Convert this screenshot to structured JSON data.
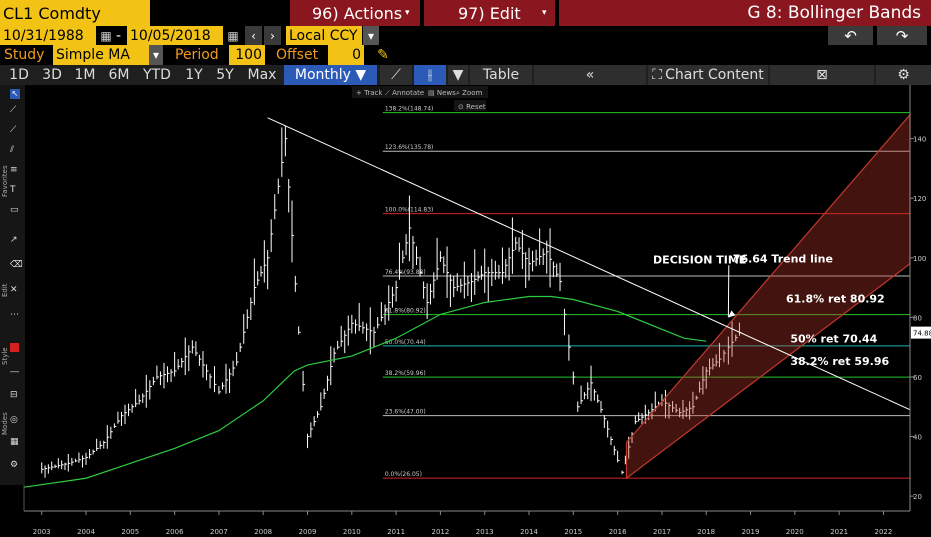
{
  "header": {
    "ticker": "CL1 Comdty",
    "actions": "96) Actions",
    "edit": "97) Edit",
    "title": "G 8: Bollinger Bands",
    "start_date": "10/31/1988",
    "date_sep": "-",
    "end_date": "10/05/2018",
    "currency": "Local CCY",
    "study_label": "Study",
    "study_value": "Simple MA",
    "period_label": "Period",
    "period_value": "100",
    "offset_label": "Offset",
    "offset_value": "0"
  },
  "periods": [
    "1D",
    "3D",
    "1M",
    "6M",
    "YTD",
    "1Y",
    "5Y",
    "Max"
  ],
  "frequency": "Monthly ▼",
  "toolbar": {
    "table": "Table",
    "collapse": "«",
    "chart_content": "Chart Content",
    "track": "Track",
    "annotate": "Annotate",
    "news": "News",
    "zoom": "Zoom",
    "reset": "Reset"
  },
  "side_tabs": [
    "Favorites",
    "Edit",
    "Style",
    "Modes"
  ],
  "colors": {
    "background": "#000000",
    "price_bars": "#ffffff",
    "moving_average": "#2ecc40",
    "trend_line": "#ffffff",
    "channel": "#c0392b",
    "fib_green": "#27c427",
    "fib_white": "#bbbbbb",
    "fib_red": "#d62020",
    "fib_cyan": "#1fb5b5"
  },
  "chart_data": {
    "type": "line",
    "title": "",
    "x_ticks": [
      "2003",
      "2004",
      "2005",
      "2006",
      "2007",
      "2008",
      "2009",
      "2010",
      "2011",
      "2012",
      "2013",
      "2014",
      "2015",
      "2016",
      "2017",
      "2018",
      "2019",
      "2020",
      "2021",
      "2022"
    ],
    "y_ticks": [
      20,
      40,
      60,
      80,
      100,
      120,
      140
    ],
    "ylim": [
      15,
      158
    ],
    "xlim": [
      2002.6,
      2022.6
    ],
    "last_price": "74.88",
    "price_series": {
      "name": "",
      "x": [
        2003.0,
        2003.3,
        2003.6,
        2004.0,
        2004.4,
        2004.8,
        2005.2,
        2005.6,
        2006.0,
        2006.4,
        2006.8,
        2007.0,
        2007.4,
        2007.8,
        2008.1,
        2008.5,
        2008.8,
        2009.0,
        2009.3,
        2009.6,
        2010.0,
        2010.5,
        2011.0,
        2011.3,
        2011.7,
        2012.0,
        2012.3,
        2012.7,
        2013.0,
        2013.4,
        2013.7,
        2014.0,
        2014.4,
        2014.7,
        2014.9,
        2015.1,
        2015.4,
        2015.7,
        2016.0,
        2016.1,
        2016.4,
        2016.7,
        2017.0,
        2017.4,
        2017.7,
        2018.0,
        2018.3,
        2018.5,
        2018.75
      ],
      "y": [
        29,
        30,
        31,
        33,
        38,
        47,
        52,
        60,
        62,
        70,
        60,
        55,
        65,
        90,
        100,
        140,
        75,
        40,
        50,
        68,
        78,
        75,
        90,
        110,
        85,
        100,
        90,
        92,
        95,
        95,
        105,
        98,
        102,
        92,
        70,
        50,
        58,
        46,
        32,
        28,
        45,
        48,
        52,
        48,
        50,
        62,
        66,
        70,
        74.88
      ]
    },
    "moving_average": {
      "name": "",
      "x": [
        2002.6,
        2004,
        2005,
        2006,
        2007,
        2008,
        2008.7,
        2009,
        2010,
        2011,
        2012,
        2013,
        2014,
        2014.5,
        2015,
        2016,
        2017,
        2017.5,
        2018
      ],
      "y": [
        23,
        26,
        31,
        36,
        42,
        52,
        62,
        64,
        67,
        73,
        81,
        85,
        87,
        87,
        86,
        82,
        76,
        73,
        72
      ]
    },
    "trend_line": {
      "label": "76.64 Trend line",
      "from": {
        "x": 2008.1,
        "y": 147
      },
      "to": {
        "x": 2022.6,
        "y": 49
      }
    },
    "channel": {
      "lower": [
        {
          "x": 2016.2,
          "y": 26
        },
        {
          "x": 2022.6,
          "y": 98
        }
      ],
      "upper": [
        {
          "x": 2016.2,
          "y": 38
        },
        {
          "x": 2022.6,
          "y": 148
        }
      ]
    },
    "fib_levels": [
      {
        "label": "138.2%(148.74)",
        "value": 148.74,
        "color": "#27c427",
        "x_start": 2010.7
      },
      {
        "label": "123.6%(135.78)",
        "value": 135.78,
        "color": "#bbbbbb",
        "x_start": 2010.7
      },
      {
        "label": "100.0%(114.83)",
        "value": 114.83,
        "color": "#d62020",
        "x_start": 2010.7
      },
      {
        "label": "76.4%(93.88)",
        "value": 93.88,
        "color": "#bbbbbb",
        "x_start": 2010.7
      },
      {
        "label": "61.8%(80.92)",
        "value": 80.92,
        "color": "#27c427",
        "x_start": 2010.7
      },
      {
        "label": "50.0%(70.44)",
        "value": 70.44,
        "color": "#1fb5b5",
        "x_start": 2010.7
      },
      {
        "label": "38.2%(59.96)",
        "value": 59.96,
        "color": "#27c427",
        "x_start": 2010.7
      },
      {
        "label": "23.6%(47.00)",
        "value": 47.0,
        "color": "#bbbbbb",
        "x_start": 2010.7
      },
      {
        "label": "0.0%(26.05)",
        "value": 26.05,
        "color": "#d62020",
        "x_start": 2010.7
      }
    ],
    "annotations": [
      {
        "text": "DECISION TIME",
        "x": 2016.8,
        "y": 98
      },
      {
        "text": "76.64 Trend line",
        "x": 2018.6,
        "y": 98.5
      },
      {
        "text": "61.8% ret 80.92",
        "x": 2019.8,
        "y": 85
      },
      {
        "text": "50% ret 70.44",
        "x": 2019.9,
        "y": 71.5
      },
      {
        "text": "38.2% ret 59.96",
        "x": 2019.9,
        "y": 64
      }
    ]
  }
}
